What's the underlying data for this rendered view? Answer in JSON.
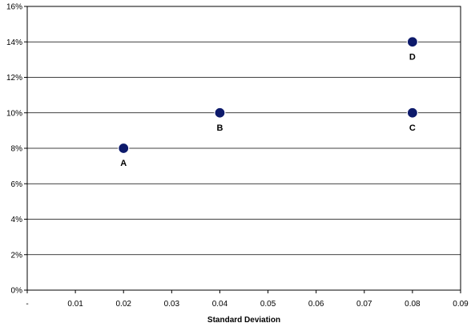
{
  "chart_data": {
    "type": "scatter",
    "title": "",
    "xlabel": "Standard Deviation",
    "ylabel": "",
    "xlim": [
      0,
      0.09
    ],
    "ylim": [
      0,
      16
    ],
    "x_ticks": [
      "-",
      "0.01",
      "0.02",
      "0.03",
      "0.04",
      "0.05",
      "0.06",
      "0.07",
      "0.08",
      "0.09"
    ],
    "y_ticks": [
      "0%",
      "2%",
      "4%",
      "6%",
      "8%",
      "10%",
      "12%",
      "14%",
      "16%"
    ],
    "grid": "horizontal",
    "legend": "none",
    "marker_color": "#0d1a6b",
    "points": [
      {
        "label": "A",
        "x": 0.02,
        "y": 8,
        "label_pos": "below"
      },
      {
        "label": "B",
        "x": 0.04,
        "y": 10,
        "label_pos": "below"
      },
      {
        "label": "C",
        "x": 0.08,
        "y": 10,
        "label_pos": "below"
      },
      {
        "label": "D",
        "x": 0.08,
        "y": 14,
        "label_pos": "below"
      }
    ]
  }
}
